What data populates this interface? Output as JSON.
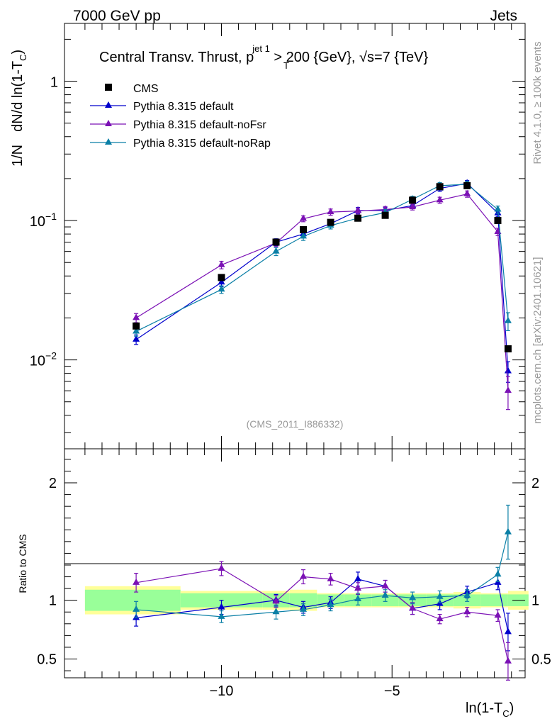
{
  "header": {
    "left": "7000 GeV pp",
    "right": "Jets"
  },
  "title": {
    "prefix": "Central Transv. Thrust, p",
    "sup": "jet 1",
    "sub": "T",
    "suffix": " > 200 {GeV}, √s=7 {TeV}"
  },
  "side_labels": {
    "top": "Rivet 4.1.0, ≥ 100k events",
    "bottom": "mcplots.cern.ch [arXiv:2401.10621]"
  },
  "analysis_tag": "(CMS_2011_I886332)",
  "colors": {
    "cms": "#000000",
    "default": "#0000cc",
    "noFsr": "#7b11b5",
    "noRap": "#0a7fa6",
    "band_inner": "#99ff99",
    "band_outer": "#ffff99"
  },
  "chart_data": [
    {
      "type": "line",
      "name": "main",
      "ylabel": "1/N dN/d ln(1-T_C)",
      "ylabel_parts": {
        "a": "1/N",
        "b": "dN/d ln(1-T",
        "sub": "C",
        "c": ")"
      },
      "yscale": "log",
      "ylim": [
        0.0023,
        2.6
      ],
      "xlim": [
        -14.6,
        -1.1
      ],
      "y_ticks": [
        {
          "value": 1,
          "base": "1",
          "exp": ""
        },
        {
          "value": 0.1,
          "base": "10",
          "exp": "−1"
        },
        {
          "value": 0.01,
          "base": "10",
          "exp": "−2"
        }
      ],
      "legend": [
        "CMS",
        "Pythia 8.315 default",
        "Pythia 8.315 default-noFsr",
        "Pythia 8.315 default-noRap"
      ],
      "x": [
        -12.5,
        -10.0,
        -8.4,
        -7.6,
        -6.8,
        -6.0,
        -5.2,
        -4.4,
        -3.6,
        -2.8,
        -1.9,
        -1.6
      ],
      "series": [
        {
          "name": "CMS",
          "values": [
            0.0175,
            0.039,
            0.07,
            0.086,
            0.097,
            0.104,
            0.109,
            0.14,
            0.175,
            0.178,
            0.1,
            0.012
          ]
        },
        {
          "name": "Pythia 8.315 default",
          "values": [
            0.014,
            0.036,
            0.07,
            0.08,
            0.095,
            0.118,
            0.118,
            0.128,
            0.17,
            0.185,
            0.113,
            0.0083
          ],
          "errors": [
            0.0011,
            0.0025,
            0.004,
            0.005,
            0.005,
            0.006,
            0.006,
            0.006,
            0.008,
            0.009,
            0.006,
            0.0014
          ]
        },
        {
          "name": "Pythia 8.315 default-noFsr",
          "values": [
            0.02,
            0.048,
            0.069,
            0.103,
            0.115,
            0.117,
            0.12,
            0.125,
            0.14,
            0.155,
            0.083,
            0.006
          ],
          "errors": [
            0.0015,
            0.003,
            0.004,
            0.005,
            0.006,
            0.006,
            0.006,
            0.006,
            0.007,
            0.008,
            0.005,
            0.0016
          ]
        },
        {
          "name": "Pythia 8.315 default-noRap",
          "values": [
            0.016,
            0.032,
            0.06,
            0.077,
            0.092,
            0.104,
            0.114,
            0.142,
            0.178,
            0.182,
            0.12,
            0.019
          ],
          "errors": [
            0.0012,
            0.002,
            0.004,
            0.005,
            0.005,
            0.005,
            0.006,
            0.007,
            0.009,
            0.009,
            0.007,
            0.0028
          ]
        }
      ]
    },
    {
      "type": "line",
      "name": "ratio",
      "xlabel": "ln(1-T_C)",
      "xlabel_parts": {
        "a": "ln(1-T",
        "sub": "C",
        "c": ")"
      },
      "ylabel": "Ratio to CMS",
      "ylim": [
        0.34,
        2.29
      ],
      "xlim": [
        -14.6,
        -1.1
      ],
      "y_ticks": [
        0.5,
        1,
        2
      ],
      "x_ticks": [
        -10,
        -5
      ],
      "x_tick_labels": [
        "−10",
        "−5"
      ],
      "bands": {
        "edges": [
          -14.0,
          -11.2,
          -8.8,
          -8.0,
          -7.2,
          -6.4,
          -5.6,
          -4.8,
          -4.0,
          -3.2,
          -2.4,
          -1.6,
          -1.0
        ],
        "inner": [
          0.09,
          0.06,
          0.06,
          0.06,
          0.05,
          0.05,
          0.05,
          0.05,
          0.05,
          0.05,
          0.05,
          0.05
        ],
        "outer": [
          0.12,
          0.08,
          0.08,
          0.09,
          0.06,
          0.06,
          0.06,
          0.06,
          0.06,
          0.07,
          0.06,
          0.08
        ]
      },
      "x": [
        -12.5,
        -10.0,
        -8.4,
        -7.6,
        -6.8,
        -6.0,
        -5.2,
        -4.4,
        -3.6,
        -2.8,
        -1.9,
        -1.6
      ],
      "series": [
        {
          "name": "Pythia 8.315 default",
          "values": [
            0.85,
            0.94,
            1.0,
            0.94,
            0.98,
            1.18,
            1.12,
            0.93,
            0.97,
            1.07,
            1.15,
            0.73
          ],
          "errors": [
            0.07,
            0.06,
            0.05,
            0.05,
            0.05,
            0.06,
            0.05,
            0.05,
            0.05,
            0.05,
            0.06,
            0.16
          ]
        },
        {
          "name": "Pythia 8.315 default-noFsr",
          "values": [
            1.15,
            1.27,
            0.99,
            1.2,
            1.18,
            1.1,
            1.12,
            0.93,
            0.84,
            0.9,
            0.87,
            0.48
          ],
          "errors": [
            0.08,
            0.06,
            0.05,
            0.06,
            0.05,
            0.05,
            0.05,
            0.05,
            0.04,
            0.04,
            0.05,
            0.16
          ]
        },
        {
          "name": "Pythia 8.315 default-noRap",
          "values": [
            0.92,
            0.86,
            0.9,
            0.92,
            0.96,
            1.01,
            1.04,
            1.02,
            1.03,
            1.04,
            1.22,
            1.58
          ],
          "errors": [
            0.07,
            0.05,
            0.06,
            0.05,
            0.05,
            0.05,
            0.05,
            0.05,
            0.05,
            0.05,
            0.06,
            0.23
          ]
        }
      ]
    }
  ]
}
